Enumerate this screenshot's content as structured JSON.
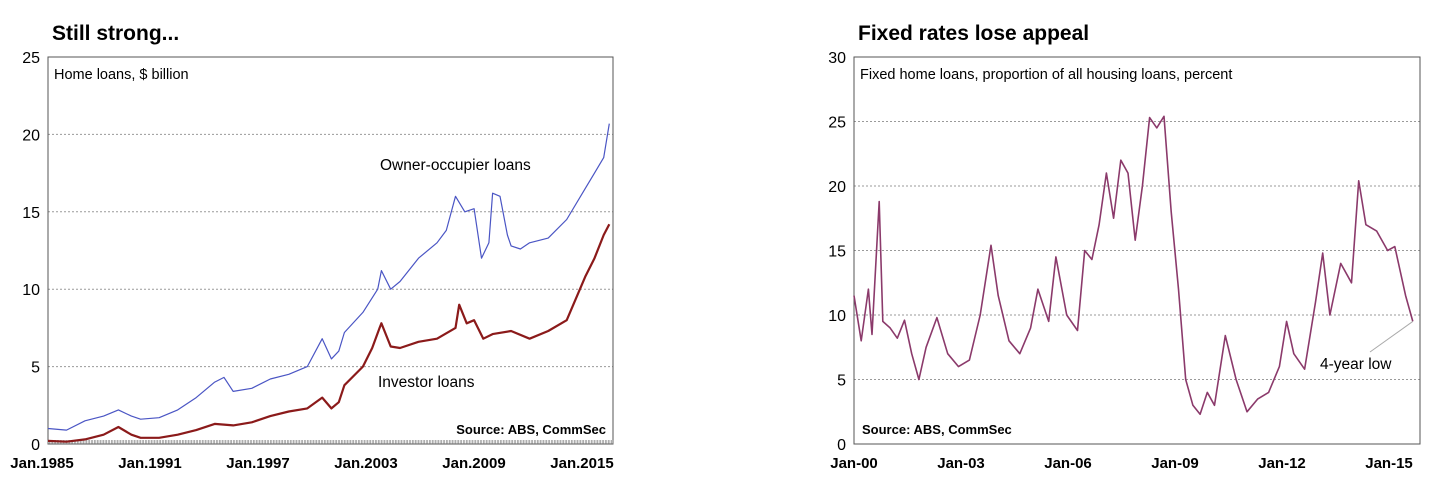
{
  "chart_data": [
    {
      "type": "line",
      "title": "Still strong...",
      "subtitle": "Home loans, $ billion",
      "source": "Source: ABS, CommSec",
      "xlabel": "",
      "ylabel": "",
      "x_tick_labels": [
        "Jan.1985",
        "Jan.1991",
        "Jan.1997",
        "Jan.2003",
        "Jan.2009",
        "Jan.2015"
      ],
      "x_range": [
        1985,
        2015.5
      ],
      "ylim": [
        0,
        25
      ],
      "y_ticks": [
        0,
        5,
        10,
        15,
        20,
        25
      ],
      "grid": true,
      "series": [
        {
          "name": "Owner-occupier loans",
          "color": "#4a55c4",
          "x": [
            1985,
            1986,
            1987,
            1988,
            1988.8,
            1989.5,
            1990,
            1991,
            1992,
            1993,
            1994,
            1994.5,
            1995,
            1996,
            1997,
            1998,
            1999,
            1999.8,
            2000.3,
            2000.7,
            2001,
            2002,
            2002.8,
            2003,
            2003.5,
            2004,
            2005,
            2006,
            2006.5,
            2007,
            2007.5,
            2008,
            2008.4,
            2008.8,
            2009,
            2009.4,
            2009.8,
            2010,
            2010.5,
            2011,
            2012,
            2013,
            2014,
            2014.5,
            2015,
            2015.3
          ],
          "y": [
            1.0,
            0.9,
            1.5,
            1.8,
            2.2,
            1.8,
            1.6,
            1.7,
            2.2,
            3.0,
            4.0,
            4.3,
            3.4,
            3.6,
            4.2,
            4.5,
            5.0,
            6.8,
            5.5,
            6.0,
            7.2,
            8.5,
            10.0,
            11.2,
            10.0,
            10.5,
            12.0,
            13.0,
            13.8,
            16.0,
            15.0,
            15.2,
            12.0,
            13.0,
            16.2,
            16.0,
            13.5,
            12.8,
            12.6,
            13.0,
            13.3,
            14.5,
            16.5,
            17.5,
            18.5,
            20.7
          ]
        },
        {
          "name": "Investor loans",
          "color": "#8b1a1a",
          "x": [
            1985,
            1986,
            1987,
            1988,
            1988.8,
            1989.5,
            1990,
            1991,
            1992,
            1993,
            1994,
            1995,
            1996,
            1997,
            1998,
            1999,
            1999.8,
            2000.3,
            2000.7,
            2001,
            2002,
            2002.5,
            2002.9,
            2003,
            2003.5,
            2004,
            2005,
            2006,
            2007,
            2007.2,
            2007.6,
            2008,
            2008.5,
            2009,
            2010,
            2011,
            2012,
            2013,
            2014,
            2014.5,
            2015,
            2015.3
          ],
          "y": [
            0.2,
            0.15,
            0.3,
            0.6,
            1.1,
            0.6,
            0.4,
            0.4,
            0.6,
            0.9,
            1.3,
            1.2,
            1.4,
            1.8,
            2.1,
            2.3,
            3.0,
            2.3,
            2.7,
            3.8,
            5.0,
            6.2,
            7.5,
            7.8,
            6.3,
            6.2,
            6.6,
            6.8,
            7.5,
            9.0,
            7.8,
            8.0,
            6.8,
            7.1,
            7.3,
            6.8,
            7.3,
            8.0,
            10.8,
            12.0,
            13.5,
            14.2
          ]
        }
      ],
      "annotations": [
        "Owner-occupier loans",
        "Investor loans"
      ]
    },
    {
      "type": "line",
      "title": "Fixed rates lose appeal",
      "subtitle": "Fixed home loans, proportion of all housing loans, percent",
      "source": "Source: ABS, CommSec",
      "xlabel": "",
      "ylabel": "",
      "x_tick_labels": [
        "Jan-00",
        "Jan-03",
        "Jan-06",
        "Jan-09",
        "Jan-12",
        "Jan-15"
      ],
      "x_range": [
        2000,
        2015.7
      ],
      "ylim": [
        0,
        30
      ],
      "y_ticks": [
        0,
        5,
        10,
        15,
        20,
        25,
        30
      ],
      "grid": true,
      "series": [
        {
          "name": "",
          "color": "#8b3a6b",
          "x": [
            2000,
            2000.2,
            2000.4,
            2000.5,
            2000.7,
            2000.8,
            2001,
            2001.2,
            2001.4,
            2001.6,
            2001.8,
            2002,
            2002.3,
            2002.6,
            2002.9,
            2003.2,
            2003.5,
            2003.8,
            2004,
            2004.3,
            2004.6,
            2004.9,
            2005.1,
            2005.4,
            2005.6,
            2005.9,
            2006.2,
            2006.4,
            2006.6,
            2006.8,
            2007,
            2007.2,
            2007.4,
            2007.6,
            2007.8,
            2008,
            2008.2,
            2008.4,
            2008.6,
            2008.8,
            2009,
            2009.2,
            2009.4,
            2009.6,
            2009.8,
            2010,
            2010.3,
            2010.6,
            2010.9,
            2011.2,
            2011.5,
            2011.8,
            2012,
            2012.2,
            2012.5,
            2012.8,
            2013,
            2013.2,
            2013.5,
            2013.8,
            2014,
            2014.2,
            2014.5,
            2014.8,
            2015,
            2015.3,
            2015.5
          ],
          "y": [
            11.5,
            8.0,
            12.0,
            8.5,
            18.8,
            9.5,
            9.0,
            8.2,
            9.6,
            7.0,
            5.0,
            7.5,
            9.8,
            7.0,
            6.0,
            6.5,
            10.0,
            15.4,
            11.5,
            8.0,
            7.0,
            9.0,
            12.0,
            9.5,
            14.5,
            10.0,
            8.8,
            15.0,
            14.3,
            17.0,
            21.0,
            17.5,
            22.0,
            21.0,
            15.8,
            20.0,
            25.3,
            24.5,
            25.4,
            18.0,
            12.0,
            5.0,
            3.0,
            2.3,
            4.0,
            3.0,
            8.4,
            5.0,
            2.5,
            3.5,
            4.0,
            6.0,
            9.5,
            7.0,
            5.8,
            11.0,
            14.8,
            10.0,
            14.0,
            12.5,
            20.4,
            17.0,
            16.5,
            15.0,
            15.3,
            11.5,
            9.5
          ]
        }
      ],
      "annotations": [
        "4-year low"
      ]
    }
  ]
}
